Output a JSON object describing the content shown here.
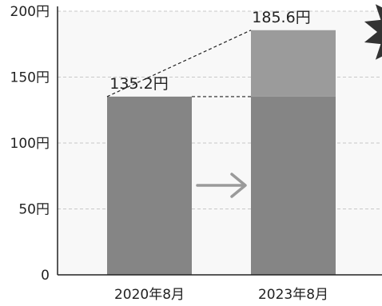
{
  "chart_data": {
    "type": "bar",
    "categories": [
      "2020年8月",
      "2023年8月"
    ],
    "values": [
      135.2,
      185.6
    ],
    "data_labels": [
      "135.2円",
      "185.6円"
    ],
    "ylim": [
      0,
      200
    ],
    "yticks": [
      0,
      50,
      100,
      150,
      200
    ],
    "ytick_labels": [
      "0",
      "50円",
      "100円",
      "150円",
      "200円"
    ],
    "grid": true,
    "title": "",
    "xlabel": "",
    "ylabel": "",
    "annotations": {
      "arrow": "right-arrow",
      "dashed_comparison_lines": true,
      "increase_segment": [
        135.2,
        185.6
      ],
      "burst": "starburst-badge"
    },
    "colors": {
      "background": "#f8f8f8",
      "bar": "#858585",
      "increase": "#9b9b9b",
      "grid": "#c8c8c8",
      "axis": "#222222",
      "arrow": "#9a9a9a",
      "burst": "#333333"
    }
  }
}
